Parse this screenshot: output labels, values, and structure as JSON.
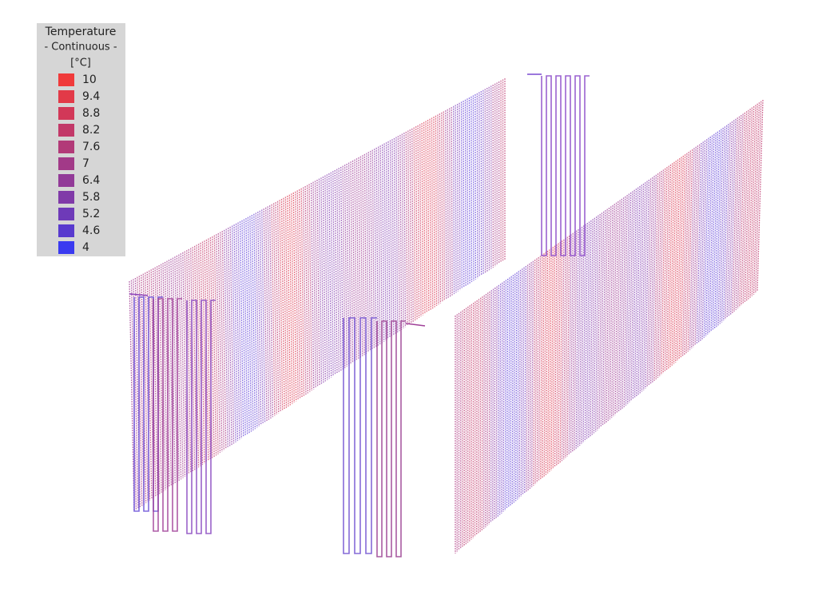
{
  "legend": {
    "title": "Temperature",
    "subtitle": "- Continuous -",
    "unit": "[°C]",
    "entries": [
      {
        "label": 10,
        "color": "#f03a3a"
      },
      {
        "label": 9.4,
        "color": "#e23a48"
      },
      {
        "label": 8.8,
        "color": "#d23858"
      },
      {
        "label": 8.2,
        "color": "#c23868"
      },
      {
        "label": 7.6,
        "color": "#b23a78"
      },
      {
        "label": 7,
        "color": "#a23a88"
      },
      {
        "label": 6.4,
        "color": "#923a98"
      },
      {
        "label": 5.8,
        "color": "#803aa8"
      },
      {
        "label": 5.2,
        "color": "#6e3ab8"
      },
      {
        "label": 4.6,
        "color": "#583ace"
      },
      {
        "label": 4,
        "color": "#3a3af0"
      }
    ]
  }
}
